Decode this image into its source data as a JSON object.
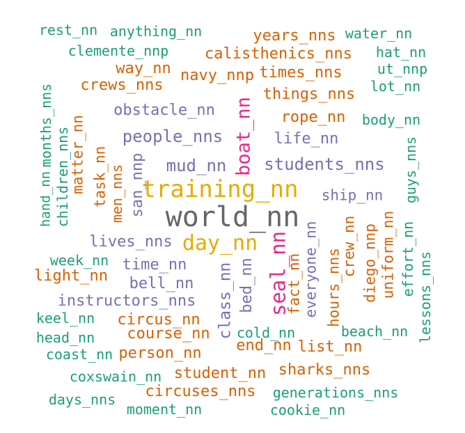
{
  "colors": {
    "green": "#1b9e77",
    "orange": "#d95f02",
    "purple": "#7570b3",
    "pink": "#e7298a",
    "gold": "#e6ab02",
    "gray": "#666666"
  },
  "words": [
    {
      "text": "world_nn",
      "color": "gray"
    },
    {
      "text": "training_nn",
      "color": "gold"
    },
    {
      "text": "day_nn",
      "color": "gold"
    },
    {
      "text": "seal_nn",
      "color": "pink"
    },
    {
      "text": "boat_nn",
      "color": "pink"
    },
    {
      "text": "students_nns",
      "color": "purple"
    },
    {
      "text": "mud_nn",
      "color": "purple"
    },
    {
      "text": "people_nns",
      "color": "purple"
    },
    {
      "text": "obstacle_nn",
      "color": "purple"
    },
    {
      "text": "life_nn",
      "color": "purple"
    },
    {
      "text": "ship_nn",
      "color": "purple"
    },
    {
      "text": "lives_nns",
      "color": "purple"
    },
    {
      "text": "time_nn",
      "color": "purple"
    },
    {
      "text": "bell_nn",
      "color": "purple"
    },
    {
      "text": "instructors_nns",
      "color": "purple"
    },
    {
      "text": "class_nn",
      "color": "purple"
    },
    {
      "text": "bed_nn",
      "color": "purple"
    },
    {
      "text": "everyone_nn",
      "color": "purple"
    },
    {
      "text": "san_nnp",
      "color": "purple"
    },
    {
      "text": "rest_nn",
      "color": "green"
    },
    {
      "text": "anything_nn",
      "color": "green"
    },
    {
      "text": "clemente_nnp",
      "color": "green"
    },
    {
      "text": "water_nn",
      "color": "green"
    },
    {
      "text": "hat_nn",
      "color": "green"
    },
    {
      "text": "ut_nnp",
      "color": "green"
    },
    {
      "text": "lot_nn",
      "color": "green"
    },
    {
      "text": "body_nn",
      "color": "green"
    },
    {
      "text": "guys_nns",
      "color": "green"
    },
    {
      "text": "effort_nn",
      "color": "green"
    },
    {
      "text": "lessons_nns",
      "color": "green"
    },
    {
      "text": "beach_nn",
      "color": "green"
    },
    {
      "text": "week_nn",
      "color": "green"
    },
    {
      "text": "keel_nn",
      "color": "green"
    },
    {
      "text": "head_nn",
      "color": "green"
    },
    {
      "text": "coast_nn",
      "color": "green"
    },
    {
      "text": "coxswain_nn",
      "color": "green"
    },
    {
      "text": "days_nns",
      "color": "green"
    },
    {
      "text": "moment_nn",
      "color": "green"
    },
    {
      "text": "cookie_nn",
      "color": "green"
    },
    {
      "text": "generations_nns",
      "color": "green"
    },
    {
      "text": "cold_nn",
      "color": "green"
    },
    {
      "text": "hand_nn",
      "color": "green"
    },
    {
      "text": "months_nns",
      "color": "green"
    },
    {
      "text": "children_nns",
      "color": "green"
    },
    {
      "text": "years_nns",
      "color": "orange"
    },
    {
      "text": "calisthenics_nns",
      "color": "orange"
    },
    {
      "text": "way_nn",
      "color": "orange"
    },
    {
      "text": "navy_nnp",
      "color": "orange"
    },
    {
      "text": "times_nns",
      "color": "orange"
    },
    {
      "text": "crews_nns",
      "color": "orange"
    },
    {
      "text": "things_nns",
      "color": "orange"
    },
    {
      "text": "rope_nn",
      "color": "orange"
    },
    {
      "text": "matter_nn",
      "color": "orange"
    },
    {
      "text": "task_nn",
      "color": "orange"
    },
    {
      "text": "men_nns",
      "color": "orange"
    },
    {
      "text": "light_nn",
      "color": "orange"
    },
    {
      "text": "circus_nn",
      "color": "orange"
    },
    {
      "text": "course_nn",
      "color": "orange"
    },
    {
      "text": "person_nn",
      "color": "orange"
    },
    {
      "text": "end_nn",
      "color": "orange"
    },
    {
      "text": "list_nn",
      "color": "orange"
    },
    {
      "text": "student_nn",
      "color": "orange"
    },
    {
      "text": "sharks_nns",
      "color": "orange"
    },
    {
      "text": "circuses_nns",
      "color": "orange"
    },
    {
      "text": "fact_nn",
      "color": "orange"
    },
    {
      "text": "hours_nns",
      "color": "orange"
    },
    {
      "text": "crew_nn",
      "color": "orange"
    },
    {
      "text": "diego_nnp",
      "color": "orange"
    },
    {
      "text": "uniform_nn",
      "color": "orange"
    }
  ]
}
